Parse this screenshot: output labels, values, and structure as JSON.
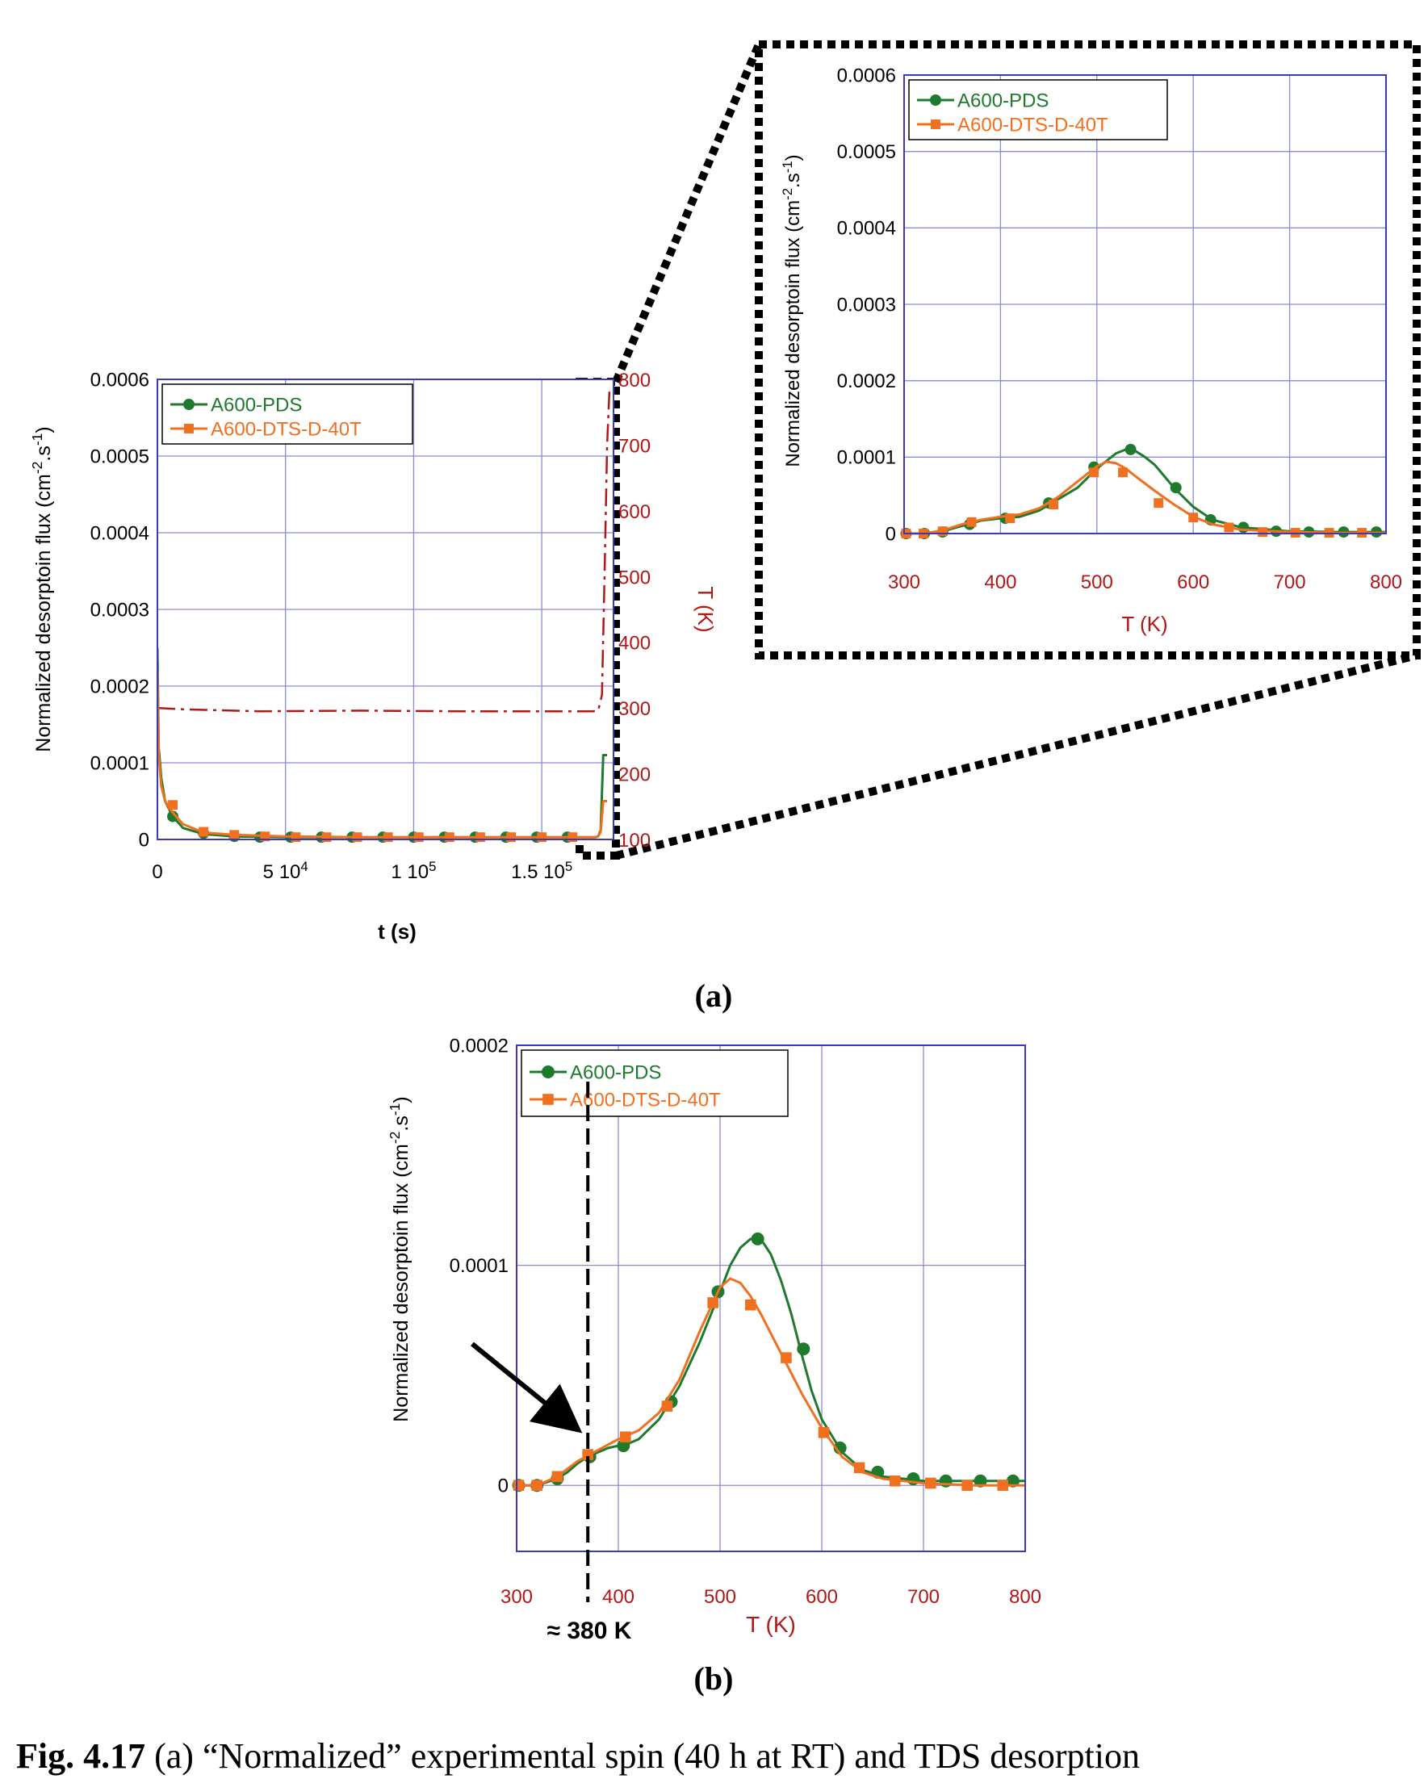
{
  "chart_data": [
    {
      "id": "a-main",
      "type": "line",
      "panel_label": "(a)",
      "xlabel": "t (s)",
      "ylabel": "Normalized desorptoin flux (cm-2.s-1)",
      "ylabel_parts": {
        "base": "Normalized desorptoin flux (cm",
        "sup1": "-2",
        "mid": ".s",
        "sup2": "-1",
        "end": ")"
      },
      "y2label": "T (K)",
      "xlim": [
        0,
        178000
      ],
      "ylim": [
        0,
        0.0006
      ],
      "y2lim": [
        100,
        800
      ],
      "x_ticks": [
        {
          "value": 0,
          "mantissa": "0",
          "exp": ""
        },
        {
          "value": 50000,
          "mantissa": "5 10",
          "exp": "4"
        },
        {
          "value": 100000,
          "mantissa": "1 10",
          "exp": "5"
        },
        {
          "value": 150000,
          "mantissa": "1.5 10",
          "exp": "5"
        }
      ],
      "y_ticks": [
        "0",
        "0.0001",
        "0.0002",
        "0.0003",
        "0.0004",
        "0.0005",
        "0.0006"
      ],
      "y2_ticks": [
        "100",
        "200",
        "300",
        "400",
        "500",
        "600",
        "700",
        "800"
      ],
      "grid": true,
      "legend": "top-left",
      "series": [
        {
          "name": "A600-PDS",
          "color": "#1f7a2e",
          "marker": "circle",
          "x": [
            0,
            500,
            1500,
            3000,
            6000,
            10000,
            18000,
            30000,
            50000,
            80000,
            120000,
            150000,
            171000,
            172000,
            173000,
            174000,
            175500
          ],
          "y": [
            0.00025,
            0.00012,
            8e-05,
            5e-05,
            3e-05,
            1.5e-05,
            7e-06,
            4e-06,
            3e-06,
            3e-06,
            3e-06,
            3e-06,
            3e-06,
            4e-06,
            1.2e-05,
            0.00011,
            0.00011
          ],
          "marker_x": [
            6000,
            18000,
            30000,
            40000,
            52000,
            64000,
            76000,
            88000,
            100000,
            112000,
            124000,
            136000,
            148000,
            160000
          ],
          "marker_y": [
            3e-05,
            8e-06,
            4e-06,
            3e-06,
            3e-06,
            3e-06,
            3e-06,
            3e-06,
            3e-06,
            3e-06,
            3e-06,
            3e-06,
            3e-06,
            3e-06
          ]
        },
        {
          "name": "A600-DTS-D-40T",
          "color": "#f07020",
          "marker": "square",
          "x": [
            0,
            500,
            1500,
            3000,
            6000,
            10000,
            18000,
            30000,
            50000,
            80000,
            120000,
            150000,
            171000,
            172000,
            173000,
            174000,
            175500
          ],
          "y": [
            0.00022,
            0.00011,
            7e-05,
            5e-05,
            3.5e-05,
            2e-05,
            9e-06,
            6e-06,
            4e-06,
            3e-06,
            3e-06,
            3e-06,
            3e-06,
            4e-06,
            1e-05,
            5e-05,
            5e-05
          ],
          "marker_x": [
            6000,
            18000,
            30000,
            42000,
            54000,
            66000,
            78000,
            90000,
            102000,
            114000,
            126000,
            138000,
            150000,
            162000
          ],
          "marker_y": [
            4.5e-05,
            1e-05,
            6e-06,
            4e-06,
            3e-06,
            3e-06,
            3e-06,
            3e-06,
            3e-06,
            3e-06,
            3e-06,
            3e-06,
            3e-06,
            3e-06
          ]
        }
      ],
      "temperature_series": {
        "color": "#b01818",
        "style": "dash-dot",
        "axis": "y2",
        "x": [
          0,
          10000,
          40000,
          80000,
          120000,
          170000,
          172000,
          173500,
          174500,
          175500,
          176500
        ],
        "y": [
          300,
          298,
          295,
          296,
          295,
          295,
          296,
          320,
          500,
          700,
          790
        ]
      }
    },
    {
      "id": "a-inset",
      "type": "line",
      "xlabel": "T (K)",
      "ylabel": "Normalized desorptoin flux (cm-2.s-1)",
      "xlim": [
        300,
        800
      ],
      "ylim": [
        0,
        0.0006
      ],
      "x_ticks": [
        "300",
        "400",
        "500",
        "600",
        "700",
        "800"
      ],
      "y_ticks": [
        "0",
        "0.0001",
        "0.0002",
        "0.0003",
        "0.0004",
        "0.0005",
        "0.0006"
      ],
      "grid": true,
      "legend": "top-left",
      "series": [
        {
          "name": "A600-PDS",
          "color": "#1f7a2e",
          "marker": "circle",
          "x": [
            300,
            320,
            340,
            360,
            380,
            400,
            420,
            440,
            460,
            480,
            500,
            520,
            530,
            540,
            550,
            560,
            570,
            580,
            600,
            620,
            650,
            700,
            750,
            800
          ],
          "y": [
            0.0,
            0.0,
            3e-06,
            1e-05,
            1.7e-05,
            2e-05,
            2.2e-05,
            3e-05,
            4.5e-05,
            6e-05,
            8.5e-05,
            0.000105,
            0.00011,
            0.000108,
            0.0001,
            9e-05,
            7.5e-05,
            6e-05,
            3.5e-05,
            1.8e-05,
            8e-06,
            3e-06,
            2e-06,
            2e-06
          ],
          "marker_x": [
            302,
            321,
            340,
            368,
            405,
            450,
            497,
            535,
            582,
            618,
            652,
            686,
            720,
            756,
            790
          ],
          "marker_y": [
            0.0,
            0.0,
            2e-06,
            1.2e-05,
            2e-05,
            4e-05,
            8.7e-05,
            0.00011,
            6e-05,
            1.8e-05,
            8e-06,
            3e-06,
            2e-06,
            2e-06,
            2e-06
          ]
        },
        {
          "name": "A600-DTS-D-40T",
          "color": "#f07020",
          "marker": "square",
          "x": [
            300,
            320,
            340,
            360,
            380,
            400,
            420,
            440,
            460,
            480,
            500,
            510,
            520,
            530,
            540,
            560,
            580,
            600,
            620,
            650,
            700,
            750,
            800
          ],
          "y": [
            0.0,
            0.0,
            4e-06,
            1.2e-05,
            1.8e-05,
            2.2e-05,
            2.5e-05,
            3.3e-05,
            4.8e-05,
            6.8e-05,
            8.8e-05,
            9.4e-05,
            9.2e-05,
            8.5e-05,
            7.5e-05,
            5.6e-05,
            3.8e-05,
            2.2e-05,
            1.2e-05,
            5e-06,
            2e-06,
            1e-06,
            1e-06
          ],
          "marker_x": [
            302,
            320,
            340,
            370,
            410,
            455,
            497,
            527,
            564,
            600,
            637,
            672,
            706,
            741,
            775
          ],
          "marker_y": [
            0.0,
            0.0,
            3e-06,
            1.5e-05,
            2e-05,
            3.8e-05,
            8e-05,
            8e-05,
            4e-05,
            2.1e-05,
            8e-06,
            2e-06,
            1e-06,
            1e-06,
            1e-06
          ]
        }
      ]
    },
    {
      "id": "b",
      "type": "line",
      "panel_label": "(b)",
      "xlabel": "T (K)",
      "ylabel": "Normalized desorptoin flux (cm-2.s-1)",
      "xlim": [
        300,
        800
      ],
      "ylim": [
        -3e-05,
        0.0002
      ],
      "x_ticks": [
        "300",
        "400",
        "500",
        "600",
        "700",
        "800"
      ],
      "y_ticks": [
        {
          "value": 0,
          "label": "0"
        },
        {
          "value": 0.0001,
          "label": "0.0001"
        },
        {
          "value": 0.0002,
          "label": "0.0002"
        }
      ],
      "grid": true,
      "legend": "top-left",
      "annotation": {
        "label": "≈ 380 K",
        "x": 370
      },
      "series": [
        {
          "name": "A600-PDS",
          "color": "#1f7a2e",
          "marker": "circle",
          "x": [
            300,
            320,
            340,
            350,
            360,
            370,
            380,
            390,
            400,
            410,
            420,
            440,
            460,
            480,
            500,
            510,
            520,
            530,
            540,
            550,
            560,
            570,
            580,
            590,
            600,
            620,
            640,
            660,
            680,
            700,
            750,
            800
          ],
          "y": [
            0.0,
            0.0,
            3e-06,
            6e-06,
            1e-05,
            1.3e-05,
            1.5e-05,
            1.7e-05,
            1.8e-05,
            1.9e-05,
            2.1e-05,
            3e-05,
            4.5e-05,
            6.5e-05,
            8.8e-05,
            0.0001,
            0.000108,
            0.000112,
            0.000112,
            0.000105,
            9.3e-05,
            7.8e-05,
            6e-05,
            4.3e-05,
            3e-05,
            1.5e-05,
            7e-06,
            4e-06,
            3e-06,
            2e-06,
            2e-06,
            2e-06
          ],
          "marker_x": [
            302,
            320,
            340,
            372,
            405,
            452,
            498,
            537,
            582,
            618,
            655,
            690,
            722,
            756,
            788
          ],
          "marker_y": [
            0.0,
            0.0,
            3e-06,
            1.3e-05,
            1.8e-05,
            3.8e-05,
            8.8e-05,
            0.000112,
            6.2e-05,
            1.7e-05,
            6e-06,
            3e-06,
            2e-06,
            2e-06,
            2e-06
          ]
        },
        {
          "name": "A600-DTS-D-40T",
          "color": "#f07020",
          "marker": "square",
          "x": [
            300,
            320,
            340,
            360,
            380,
            400,
            420,
            440,
            460,
            480,
            500,
            510,
            520,
            530,
            540,
            560,
            580,
            600,
            620,
            640,
            660,
            700,
            750,
            800
          ],
          "y": [
            0.0,
            0.0,
            4e-06,
            1.1e-05,
            1.6e-05,
            2.1e-05,
            2.5e-05,
            3.3e-05,
            4.8e-05,
            7e-05,
            9e-05,
            9.4e-05,
            9.2e-05,
            8.6e-05,
            7.8e-05,
            6e-05,
            4.2e-05,
            2.6e-05,
            1.3e-05,
            6e-06,
            3e-06,
            1e-06,
            0.0,
            0.0
          ],
          "marker_x": [
            302,
            320,
            340,
            370,
            407,
            448,
            493,
            530,
            565,
            602,
            637,
            672,
            707,
            743,
            778
          ],
          "marker_y": [
            0.0,
            0.0,
            4e-06,
            1.4e-05,
            2.2e-05,
            3.6e-05,
            8.3e-05,
            8.2e-05,
            5.8e-05,
            2.4e-05,
            8e-06,
            2e-06,
            1e-06,
            0.0,
            0.0
          ]
        }
      ]
    }
  ],
  "caption": {
    "label": "Fig. 4.17",
    "text": " (a) “Normalized” experimental spin (40 h at RT) and TDS desorption"
  }
}
